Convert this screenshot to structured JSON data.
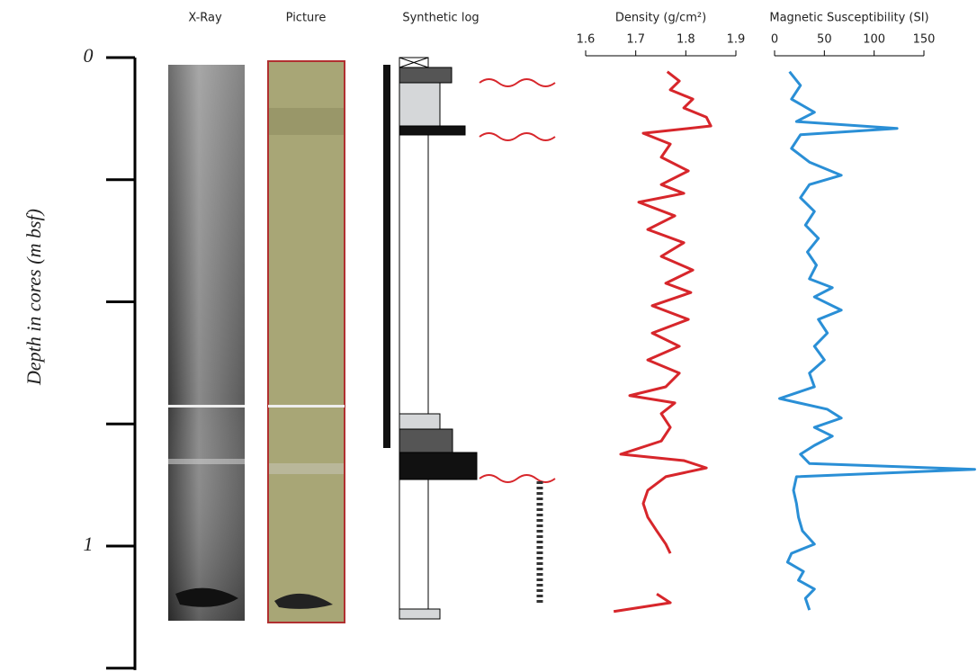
{
  "figure": {
    "y_label": "Depth in cores (m bsf)",
    "columns": [
      "X-Ray",
      "Picture",
      "Synthetic log"
    ],
    "ylim": [
      0,
      1.254
    ],
    "yticks": [
      0,
      1
    ],
    "yminor_ticks": [
      0.25,
      0.5,
      0.75,
      1.25
    ]
  },
  "chart_data": [
    {
      "type": "line",
      "title": "Density (g/cm²)",
      "color": "#d7262b",
      "xlim": [
        1.6,
        1.9
      ],
      "xticks": [
        1.6,
        1.7,
        1.8,
        1.9
      ],
      "depth": [
        0.029,
        0.048,
        0.066,
        0.085,
        0.103,
        0.122,
        0.14,
        0.155,
        0.177,
        0.204,
        0.232,
        0.26,
        0.278,
        0.296,
        0.324,
        0.352,
        0.379,
        0.407,
        0.435,
        0.462,
        0.481,
        0.508,
        0.536,
        0.564,
        0.591,
        0.619,
        0.646,
        0.674,
        0.692,
        0.707,
        0.729,
        0.757,
        0.785,
        0.812,
        0.825,
        0.84,
        0.858,
        0.886,
        0.913,
        0.941,
        0.969,
        0.996,
        1.015,
        null,
        1.098,
        1.116,
        1.134
      ],
      "values": [
        1.763,
        1.787,
        1.769,
        1.814,
        1.796,
        1.841,
        1.85,
        1.715,
        1.769,
        1.751,
        1.805,
        1.751,
        1.796,
        1.706,
        1.778,
        1.724,
        1.796,
        1.751,
        1.814,
        1.76,
        1.81,
        1.733,
        1.805,
        1.733,
        1.787,
        1.724,
        1.787,
        1.76,
        1.688,
        1.778,
        1.751,
        1.769,
        1.751,
        1.67,
        1.796,
        1.841,
        1.76,
        1.724,
        1.715,
        1.724,
        1.742,
        1.76,
        1.769,
        null,
        1.742,
        1.769,
        1.656
      ]
    },
    {
      "type": "line",
      "title": "Magnetic Susceptibility (SI)",
      "color": "#2a8fd6",
      "xlim": [
        0,
        150
      ],
      "xticks": [
        0,
        50,
        100,
        150
      ],
      "depth": [
        0.029,
        0.057,
        0.085,
        0.112,
        0.131,
        0.145,
        0.158,
        0.186,
        0.214,
        0.241,
        0.26,
        0.287,
        0.315,
        0.343,
        0.37,
        0.398,
        0.425,
        0.453,
        0.471,
        0.49,
        0.517,
        0.536,
        0.564,
        0.591,
        0.619,
        0.646,
        0.674,
        0.698,
        0.72,
        0.738,
        0.757,
        0.775,
        0.794,
        0.812,
        0.831,
        0.843,
        0.858,
        0.886,
        0.913,
        0.941,
        0.969,
        0.996,
        1.015,
        1.033,
        1.052,
        1.07,
        1.088,
        1.107,
        1.131
      ],
      "values": [
        15,
        26,
        17,
        40,
        22,
        123,
        26,
        17,
        35,
        67,
        35,
        26,
        40,
        31,
        44,
        33,
        42,
        35,
        58,
        40,
        67,
        44,
        53,
        40,
        50,
        35,
        40,
        5,
        53,
        67,
        40,
        58,
        40,
        26,
        35,
        201,
        22,
        19,
        22,
        24,
        28,
        40,
        17,
        13,
        29,
        24,
        40,
        31,
        35
      ]
    }
  ]
}
